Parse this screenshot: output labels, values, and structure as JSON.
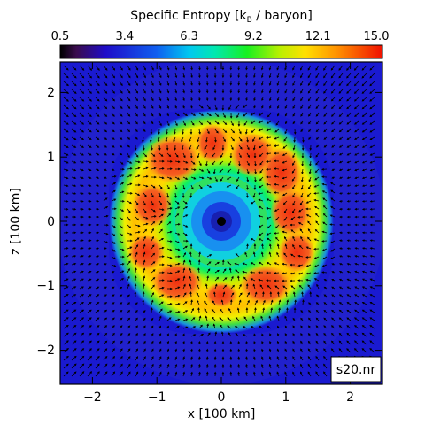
{
  "colorbar": {
    "title_main": "Specific Entropy [k",
    "title_sub": "B",
    "title_end": " / baryon]",
    "ticks": [
      "0.5",
      "3.4",
      "6.3",
      "9.2",
      "12.1",
      "15.0"
    ],
    "stops": [
      {
        "offset": 0.0,
        "color": "#000000"
      },
      {
        "offset": 0.05,
        "color": "#3a0c4e"
      },
      {
        "offset": 0.14,
        "color": "#1f0cc8"
      },
      {
        "offset": 0.3,
        "color": "#0f5ff0"
      },
      {
        "offset": 0.4,
        "color": "#00c8f0"
      },
      {
        "offset": 0.48,
        "color": "#00e8b0"
      },
      {
        "offset": 0.58,
        "color": "#18f020"
      },
      {
        "offset": 0.68,
        "color": "#b8f000"
      },
      {
        "offset": 0.76,
        "color": "#ffe000"
      },
      {
        "offset": 0.86,
        "color": "#ff9000"
      },
      {
        "offset": 1.0,
        "color": "#f01000"
      }
    ]
  },
  "axes": {
    "xlabel": "x [100 km]",
    "ylabel": "z [100 km]",
    "xticks": [
      "−2",
      "−1",
      "0",
      "1",
      "2"
    ],
    "yticks": [
      "2",
      "1",
      "0",
      "−1",
      "−2"
    ]
  },
  "field": {
    "background_color": "#1a1ad0",
    "shell_color": "#f0e000",
    "plume_color": "#f25a1a",
    "core_color": "#000000"
  },
  "label": {
    "text": "s20.nr"
  }
}
